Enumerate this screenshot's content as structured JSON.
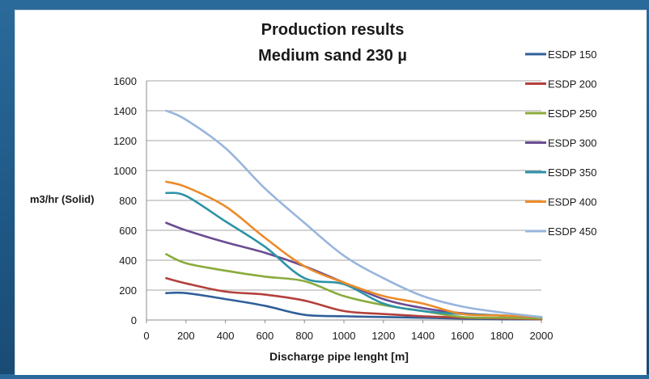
{
  "chart_data": {
    "type": "line",
    "title": "Production results",
    "subtitle": "Medium sand 230 µ",
    "xlabel": "Discharge pipe lenght [m]",
    "ylabel": "m3/hr (Solid)",
    "xlim": [
      0,
      2000
    ],
    "ylim": [
      0,
      1600
    ],
    "xticks": [
      0,
      200,
      400,
      600,
      800,
      1000,
      1200,
      1400,
      1600,
      1800,
      2000
    ],
    "yticks": [
      0,
      200,
      400,
      600,
      800,
      1000,
      1200,
      1400,
      1600
    ],
    "grid": "horizontal",
    "legend_position": "right",
    "series": [
      {
        "name": "ESDP 150",
        "color": "#2f5f9a",
        "x": [
          100,
          200,
          400,
          600,
          800,
          1000,
          1200,
          1400,
          1600,
          1800,
          2000
        ],
        "y": [
          180,
          180,
          140,
          95,
          35,
          25,
          20,
          15,
          10,
          5,
          5
        ]
      },
      {
        "name": "ESDP 200",
        "color": "#b3403c",
        "x": [
          100,
          200,
          400,
          600,
          800,
          1000,
          1200,
          1400,
          1600,
          1800,
          2000
        ],
        "y": [
          280,
          245,
          190,
          170,
          130,
          60,
          40,
          25,
          15,
          10,
          5
        ]
      },
      {
        "name": "ESDP 250",
        "color": "#8aab3c",
        "x": [
          100,
          200,
          400,
          600,
          800,
          1000,
          1200,
          1400,
          1600,
          1800,
          2000
        ],
        "y": [
          440,
          380,
          330,
          290,
          260,
          160,
          100,
          60,
          20,
          15,
          10
        ]
      },
      {
        "name": "ESDP 300",
        "color": "#6a4c93",
        "x": [
          100,
          200,
          400,
          600,
          800,
          1000,
          1200,
          1400,
          1600,
          1800,
          2000
        ],
        "y": [
          650,
          600,
          520,
          450,
          360,
          250,
          140,
          80,
          45,
          30,
          20
        ]
      },
      {
        "name": "ESDP 350",
        "color": "#2d93a8",
        "x": [
          100,
          200,
          400,
          600,
          800,
          1000,
          1200,
          1400,
          1600,
          1800,
          2000
        ],
        "y": [
          850,
          830,
          660,
          490,
          280,
          240,
          110,
          60,
          40,
          30,
          20
        ]
      },
      {
        "name": "ESDP 400",
        "color": "#ec8b2a",
        "x": [
          100,
          200,
          400,
          600,
          800,
          1000,
          1200,
          1400,
          1600,
          1800,
          2000
        ],
        "y": [
          925,
          890,
          760,
          550,
          360,
          250,
          160,
          110,
          40,
          30,
          20
        ]
      },
      {
        "name": "ESDP 450",
        "color": "#98b5dc",
        "x": [
          100,
          200,
          400,
          600,
          800,
          1000,
          1200,
          1400,
          1600,
          1800,
          2000
        ],
        "y": [
          1400,
          1340,
          1150,
          880,
          650,
          430,
          280,
          160,
          90,
          50,
          20
        ]
      }
    ]
  }
}
